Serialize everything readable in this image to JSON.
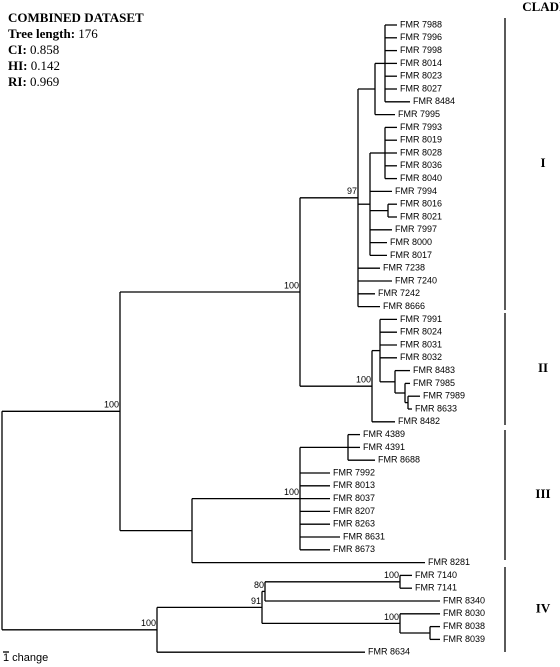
{
  "header": {
    "title": "COMBINED DATASET",
    "stats": [
      {
        "label": "Tree length:",
        "value": 176
      },
      {
        "label": "CI:",
        "value": 0.858
      },
      {
        "label": "HI:",
        "value": 0.142
      },
      {
        "label": "RI:",
        "value": 0.969
      }
    ]
  },
  "taxa": [
    "FMR 7988",
    "FMR 7996",
    "FMR 7998",
    "FMR 8014",
    "FMR 8023",
    "FMR 8027",
    "FMR 8484",
    "FMR 7995",
    "FMR 7993",
    "FMR 8019",
    "FMR 8028",
    "FMR 8036",
    "FMR 8040",
    "FMR 7994",
    "FMR 8016",
    "FMR 8021",
    "FMR 7997",
    "FMR 8000",
    "FMR 8017",
    "FMR 7238",
    "FMR 7240",
    "FMR 7242",
    "FMR 8666",
    "FMR 7991",
    "FMR 8024",
    "FMR 8031",
    "FMR 8032",
    "FMR 8483",
    "FMR 7985",
    "FMR 7989",
    "FMR 8633",
    "FMR 8482",
    "FMR 4389",
    "FMR 4391",
    "FMR 8688",
    "FMR 7992",
    "FMR 8013",
    "FMR 8037",
    "FMR 8207",
    "FMR 8263",
    "FMR 8631",
    "FMR 8673",
    "FMR 8281",
    "FMR 7140",
    "FMR 7141",
    "FMR 8340",
    "FMR 8030",
    "FMR 8038",
    "FMR 8039",
    "FMR 8634"
  ],
  "supports": [
    "100",
    "100",
    "97",
    "100",
    "100",
    "100",
    "91",
    "80",
    "100",
    "100"
  ],
  "clades": {
    "heading": "CLADE",
    "labels": [
      "I",
      "II",
      "III",
      "IV"
    ]
  },
  "scale": "1 change"
}
